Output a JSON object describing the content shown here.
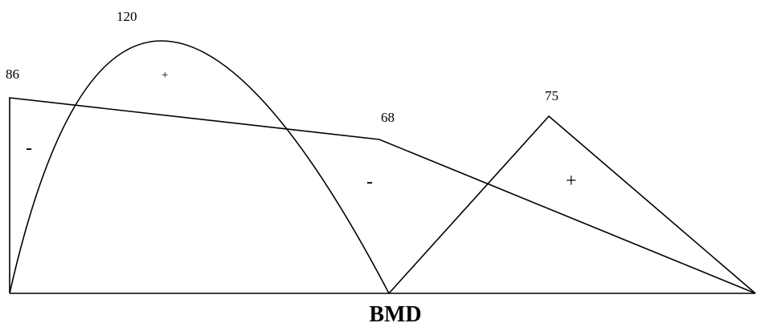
{
  "caption": "BMD",
  "value_labels": {
    "left_end": "86",
    "first_peak": "120",
    "middle_point": "68",
    "second_peak": "75"
  },
  "sign_labels": {
    "left_region": "-",
    "first_span": "+",
    "middle_region": "-",
    "second_span": "+"
  }
}
